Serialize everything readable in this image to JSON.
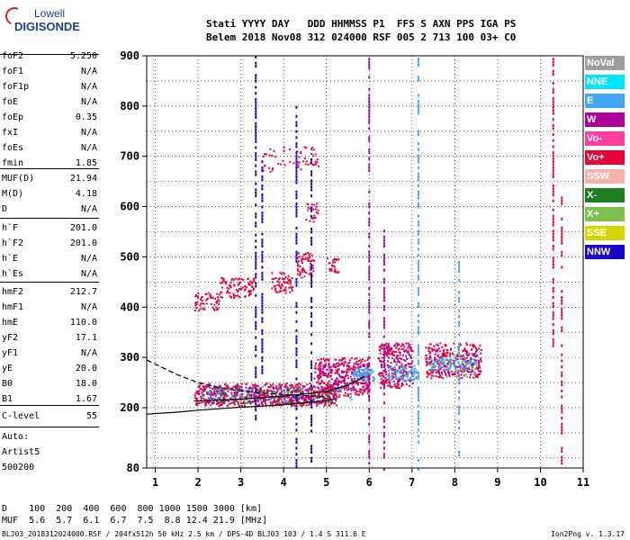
{
  "logo": {
    "line1": "Lowell",
    "line2": "DIGISONDE"
  },
  "header": {
    "row1": "Stati YYYY DAY   DDD HHMMSS P1  FFS S AXN PPS IGA PS",
    "row2": "Belem 2018 Nov08 312 024000 RSF 005 2 713 100 03+ C0"
  },
  "params": [
    {
      "label": "foF2",
      "value": "5.250"
    },
    {
      "label": "foF1",
      "value": "N/A"
    },
    {
      "label": "foF1p",
      "value": "N/A"
    },
    {
      "label": "foE",
      "value": "N/A"
    },
    {
      "label": "foEp",
      "value": "0.35"
    },
    {
      "label": "fxI",
      "value": "N/A"
    },
    {
      "label": "foEs",
      "value": "N/A"
    },
    {
      "label": "fmin",
      "value": "1.85"
    },
    {
      "label": "MUF(D)",
      "value": "21.94"
    },
    {
      "label": "M(D)",
      "value": "4.18"
    },
    {
      "label": "D",
      "value": "N/A"
    },
    {
      "label": "h`F",
      "value": "201.0"
    },
    {
      "label": "h`F2",
      "value": "201.0"
    },
    {
      "label": "h`E",
      "value": "N/A"
    },
    {
      "label": "h`Es",
      "value": "N/A"
    },
    {
      "label": "hmF2",
      "value": "212.7"
    },
    {
      "label": "hmF1",
      "value": "N/A"
    },
    {
      "label": "hmE",
      "value": "110.0"
    },
    {
      "label": "yF2",
      "value": "17.1"
    },
    {
      "label": "yF1",
      "value": "N/A"
    },
    {
      "label": "yE",
      "value": "20.0"
    },
    {
      "label": "B0",
      "value": "18.0"
    },
    {
      "label": "B1",
      "value": "1.67"
    },
    {
      "label": "C-level",
      "value": "55"
    }
  ],
  "auto": {
    "line1": "Auto:",
    "line2": "Artist5",
    "line3": "500200"
  },
  "legend": [
    {
      "label": "NoVal",
      "color": "#9e9e9e"
    },
    {
      "label": "NNE",
      "color": "#00e5ff"
    },
    {
      "label": "E",
      "color": "#42a5f5"
    },
    {
      "label": "W",
      "color": "#b0009b"
    },
    {
      "label": "Vo-",
      "color": "#ff3fa0"
    },
    {
      "label": "Vo+",
      "color": "#e8003a"
    },
    {
      "label": "SSW",
      "color": "#f4b3a8"
    },
    {
      "label": "X-",
      "color": "#1b7f1b"
    },
    {
      "label": "X+",
      "color": "#7fbf4f"
    },
    {
      "label": "SSE",
      "color": "#d6d600"
    },
    {
      "label": "NNW",
      "color": "#1a00c8"
    }
  ],
  "muf_table": {
    "d_row": "D    100  200  400  600  800 1000 1500 3000 [km]",
    "muf_row": "MUF  5.6  5.7  6.1  6.7  7.5  8.8 12.4 21.9 [MHz]"
  },
  "footer": {
    "left": "BLJ03_2018312024000.RSF / 204fx512h 50 kHz 2.5 km / DPS-4D BLJ03 103 / 1.4 S 311.6 E",
    "right": "Ion2Png v. 1.3.17"
  },
  "chart_data": {
    "type": "scatter",
    "xlabel": "",
    "ylabel": "",
    "xlim": [
      0.8,
      11
    ],
    "ylim": [
      80,
      900
    ],
    "x_ticks": [
      1,
      2,
      3,
      4,
      5,
      6,
      7,
      8,
      9,
      10,
      11
    ],
    "y_ticks": [
      80,
      200,
      300,
      400,
      500,
      600,
      700,
      800,
      900
    ],
    "grid": true,
    "dashed_trace": [
      [
        0.8,
        295
      ],
      [
        1.5,
        266
      ],
      [
        2.0,
        250
      ],
      [
        2.5,
        240
      ],
      [
        3.0,
        233
      ],
      [
        3.5,
        229
      ],
      [
        4.0,
        226
      ],
      [
        4.5,
        224
      ],
      [
        5.0,
        222
      ]
    ],
    "solid_trace": [
      [
        0.8,
        187
      ],
      [
        1.5,
        191
      ],
      [
        2.0,
        195
      ],
      [
        3.0,
        201
      ],
      [
        3.5,
        203
      ],
      [
        4.0,
        206
      ],
      [
        4.5,
        210
      ],
      [
        5.0,
        214
      ],
      [
        5.25,
        218
      ]
    ],
    "f_layer_trace": [
      [
        1.9,
        213
      ],
      [
        3.0,
        217
      ],
      [
        4.0,
        223
      ],
      [
        5.0,
        232
      ],
      [
        5.5,
        245
      ],
      [
        5.9,
        262
      ]
    ],
    "echo_clusters": [
      {
        "f": [
          1.9,
          5.3
        ],
        "h": [
          205,
          250
        ],
        "color": "#e8003a",
        "n": 520
      },
      {
        "f": [
          2.0,
          5.2
        ],
        "h": [
          210,
          245
        ],
        "color": "#b0009b",
        "n": 260
      },
      {
        "f": [
          2.0,
          5.2
        ],
        "h": [
          210,
          240
        ],
        "color": "#1b7f1b",
        "n": 90
      },
      {
        "f": [
          2.2,
          5.6
        ],
        "h": [
          215,
          245
        ],
        "color": "#42a5f5",
        "n": 110
      },
      {
        "f": [
          4.7,
          6.0
        ],
        "h": [
          225,
          300
        ],
        "color": "#e8003a",
        "n": 260
      },
      {
        "f": [
          4.8,
          6.0
        ],
        "h": [
          235,
          290
        ],
        "color": "#b0009b",
        "n": 140
      },
      {
        "f": [
          5.6,
          6.1
        ],
        "h": [
          255,
          280
        ],
        "color": "#42a5f5",
        "n": 80
      },
      {
        "f": [
          6.2,
          7.0
        ],
        "h": [
          240,
          330
        ],
        "color": "#e8003a",
        "n": 200
      },
      {
        "f": [
          6.2,
          7.0
        ],
        "h": [
          245,
          330
        ],
        "color": "#b0009b",
        "n": 90
      },
      {
        "f": [
          6.4,
          7.1
        ],
        "h": [
          255,
          285
        ],
        "color": "#42a5f5",
        "n": 80
      },
      {
        "f": [
          7.3,
          8.6
        ],
        "h": [
          260,
          330
        ],
        "color": "#e8003a",
        "n": 240
      },
      {
        "f": [
          7.4,
          8.6
        ],
        "h": [
          265,
          320
        ],
        "color": "#b0009b",
        "n": 110
      },
      {
        "f": [
          7.4,
          8.5
        ],
        "h": [
          275,
          300
        ],
        "color": "#42a5f5",
        "n": 90
      },
      {
        "f": [
          7.4,
          8.5
        ],
        "h": [
          260,
          310
        ],
        "color": "#7fbf4f",
        "n": 40
      },
      {
        "f": [
          1.9,
          2.5
        ],
        "h": [
          395,
          430
        ],
        "color": "#e8003a",
        "n": 60
      },
      {
        "f": [
          2.5,
          3.3
        ],
        "h": [
          420,
          460
        ],
        "color": "#e8003a",
        "n": 90
      },
      {
        "f": [
          3.7,
          4.2
        ],
        "h": [
          430,
          470
        ],
        "color": "#e8003a",
        "n": 60
      },
      {
        "f": [
          4.3,
          4.7
        ],
        "h": [
          460,
          510
        ],
        "color": "#e8003a",
        "n": 60
      },
      {
        "f": [
          5.0,
          5.3
        ],
        "h": [
          470,
          500
        ],
        "color": "#e8003a",
        "n": 30
      },
      {
        "f": [
          4.5,
          4.8
        ],
        "h": [
          570,
          610
        ],
        "color": "#e8003a",
        "n": 25
      },
      {
        "f": [
          3.5,
          4.4
        ],
        "h": [
          670,
          720
        ],
        "color": "#e8003a",
        "n": 30
      },
      {
        "f": [
          4.3,
          4.8
        ],
        "h": [
          680,
          720
        ],
        "color": "#e8003a",
        "n": 25
      }
    ],
    "vertical_streaks": [
      {
        "f": 3.35,
        "h": [
          180,
          900
        ],
        "color": "#1a00c8"
      },
      {
        "f": 3.5,
        "h": [
          260,
          700
        ],
        "color": "#1a00c8"
      },
      {
        "f": 4.3,
        "h": [
          80,
          800
        ],
        "color": "#1a00c8"
      },
      {
        "f": 4.65,
        "h": [
          90,
          700
        ],
        "color": "#1a00c8"
      },
      {
        "f": 6.0,
        "h": [
          80,
          900
        ],
        "color": "#b0009b"
      },
      {
        "f": 6.35,
        "h": [
          80,
          560
        ],
        "color": "#b0009b"
      },
      {
        "f": 7.15,
        "h": [
          80,
          900
        ],
        "color": "#42a5f5"
      },
      {
        "f": 8.1,
        "h": [
          90,
          500
        ],
        "color": "#42a5f5"
      },
      {
        "f": 10.3,
        "h": [
          320,
          900
        ],
        "color": "#e8003a"
      },
      {
        "f": 10.5,
        "h": [
          80,
          620
        ],
        "color": "#e8003a"
      }
    ]
  }
}
